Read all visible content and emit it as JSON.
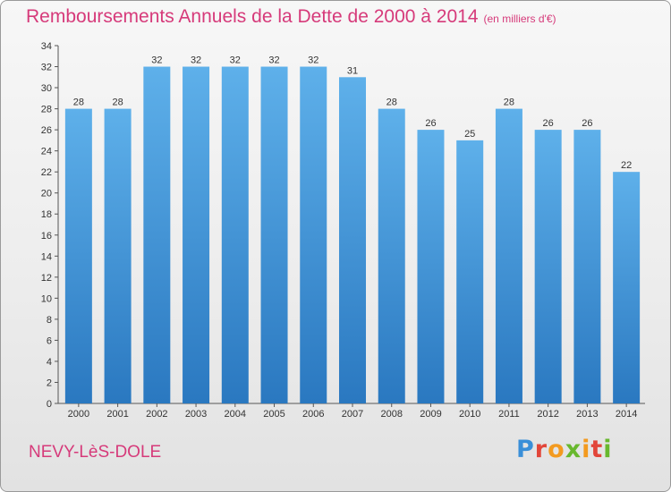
{
  "header": {
    "title": "Remboursements Annuels de la Dette de 2000 à 2014",
    "unit": "(en milliers d'€)"
  },
  "footer": {
    "commune": "NEVY-LèS-DOLE",
    "logo": "Proxiti"
  },
  "colors": {
    "bar_light": "#5eb0ea",
    "bar_dark": "#2a78c0",
    "title": "#d63a7a"
  },
  "chart_data": {
    "type": "bar",
    "title": "Remboursements Annuels de la Dette de 2000 à 2014",
    "xlabel": "",
    "ylabel": "",
    "categories": [
      "2000",
      "2001",
      "2002",
      "2003",
      "2004",
      "2005",
      "2006",
      "2007",
      "2008",
      "2009",
      "2010",
      "2011",
      "2012",
      "2013",
      "2014"
    ],
    "values": [
      28,
      28,
      32,
      32,
      32,
      32,
      32,
      31,
      28,
      26,
      25,
      28,
      26,
      26,
      22
    ],
    "ylim": [
      0,
      34
    ],
    "ytick_step": 2,
    "grid": false,
    "legend": "none"
  }
}
